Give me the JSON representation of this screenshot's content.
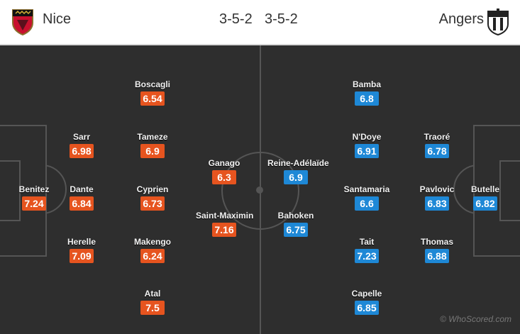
{
  "header": {
    "home_team": "Nice",
    "home_crest_icon": "nice-crest-icon",
    "home_formation": "3-5-2",
    "away_formation": "3-5-2",
    "away_team": "Angers",
    "away_crest_icon": "angers-crest-icon"
  },
  "colors": {
    "home_rating": "#e6541f",
    "away_rating": "#1e88d6",
    "pitch": "#2e2e2e",
    "lines": "#555555"
  },
  "home_players": [
    {
      "name": "Benitez",
      "rating": "7.24"
    },
    {
      "name": "Sarr",
      "rating": "6.98"
    },
    {
      "name": "Dante",
      "rating": "6.84"
    },
    {
      "name": "Herelle",
      "rating": "7.09"
    },
    {
      "name": "Boscagli",
      "rating": "6.54"
    },
    {
      "name": "Tameze",
      "rating": "6.9"
    },
    {
      "name": "Cyprien",
      "rating": "6.73"
    },
    {
      "name": "Makengo",
      "rating": "6.24"
    },
    {
      "name": "Atal",
      "rating": "7.5"
    },
    {
      "name": "Ganago",
      "rating": "6.3"
    },
    {
      "name": "Saint-Maximin",
      "rating": "7.16"
    }
  ],
  "away_players": [
    {
      "name": "Reine-Adélaïde",
      "rating": "6.9"
    },
    {
      "name": "Bahoken",
      "rating": "6.75"
    },
    {
      "name": "Bamba",
      "rating": "6.8"
    },
    {
      "name": "N'Doye",
      "rating": "6.91"
    },
    {
      "name": "Santamaria",
      "rating": "6.6"
    },
    {
      "name": "Tait",
      "rating": "7.23"
    },
    {
      "name": "Capelle",
      "rating": "6.85"
    },
    {
      "name": "Traoré",
      "rating": "6.78"
    },
    {
      "name": "Pavlovic",
      "rating": "6.83"
    },
    {
      "name": "Thomas",
      "rating": "6.88"
    },
    {
      "name": "Butelle",
      "rating": "6.82"
    }
  ],
  "credit": "© WhoScored.com"
}
